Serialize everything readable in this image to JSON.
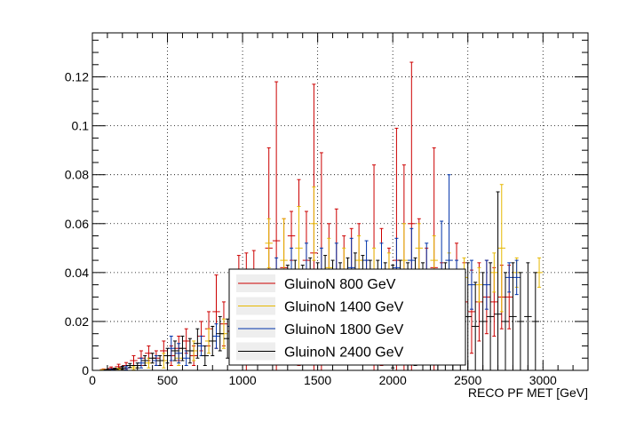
{
  "chart_data": {
    "type": "scatter",
    "title": "",
    "xlabel": "RECO PF MET [GeV]",
    "ylabel": "",
    "xlim": [
      0,
      3300
    ],
    "ylim": [
      0,
      0.138
    ],
    "grid": true,
    "legend_position": "bottom-center",
    "x_ticks": [
      "0",
      "500",
      "1000",
      "1500",
      "2000",
      "2500",
      "3000"
    ],
    "y_ticks": [
      "0",
      "0.02",
      "0.04",
      "0.06",
      "0.08",
      "0.1",
      "0.12"
    ],
    "bin_half_width": 25,
    "series": [
      {
        "name": "GluinoN 800 GeV",
        "color": "#cc0000",
        "points": [
          [
            75,
            0.0003,
            0.0003
          ],
          [
            125,
            0.0008,
            0.0006
          ],
          [
            175,
            0.0015,
            0.001
          ],
          [
            225,
            0.002,
            0.0012
          ],
          [
            275,
            0.004,
            0.002
          ],
          [
            325,
            0.005,
            0.003
          ],
          [
            375,
            0.007,
            0.003
          ],
          [
            425,
            0.005,
            0.003
          ],
          [
            475,
            0.008,
            0.004
          ],
          [
            525,
            0.006,
            0.004
          ],
          [
            575,
            0.009,
            0.005
          ],
          [
            625,
            0.012,
            0.005
          ],
          [
            675,
            0.006,
            0.004
          ],
          [
            725,
            0.014,
            0.006
          ],
          [
            775,
            0.017,
            0.007
          ],
          [
            825,
            0.024,
            0.015
          ],
          [
            875,
            0.019,
            0.009
          ],
          [
            925,
            0.016,
            0.01
          ],
          [
            975,
            0.025,
            0.022
          ],
          [
            1025,
            0.022,
            0.026
          ],
          [
            1075,
            0.034,
            0.015
          ],
          [
            1175,
            0.05,
            0.041
          ],
          [
            1225,
            0.053,
            0.065
          ],
          [
            1275,
            0.042,
            0.02
          ],
          [
            1325,
            0.055,
            0.01
          ],
          [
            1375,
            0.04,
            0.038
          ],
          [
            1425,
            0.045,
            0.02
          ],
          [
            1475,
            0.048,
            0.069
          ],
          [
            1525,
            0.04,
            0.049
          ],
          [
            1575,
            0.035,
            0.025
          ],
          [
            1625,
            0.04,
            0.026
          ],
          [
            1675,
            0.035,
            0.02
          ],
          [
            1725,
            0.038,
            0.02
          ],
          [
            1775,
            0.04,
            0.02
          ],
          [
            1825,
            0.03,
            0.015
          ],
          [
            1875,
            0.036,
            0.048
          ],
          [
            1925,
            0.03,
            0.028
          ],
          [
            1975,
            0.03,
            0.02
          ],
          [
            2025,
            0.045,
            0.054
          ],
          [
            2075,
            0.04,
            0.044
          ],
          [
            2125,
            0.06,
            0.066
          ],
          [
            2175,
            0.04,
            0.022
          ],
          [
            2225,
            0.03,
            0.02
          ],
          [
            2275,
            0.042,
            0.049
          ],
          [
            2325,
            0.03,
            0.014
          ],
          [
            2375,
            0.028,
            0.012
          ],
          [
            2425,
            0.03,
            0.022
          ],
          [
            2475,
            0.028,
            0.016
          ],
          [
            2525,
            0.024,
            0.017
          ],
          [
            2575,
            0.028,
            0.016
          ],
          [
            2625,
            0.03,
            0.015
          ],
          [
            2675,
            0.028,
            0.014
          ],
          [
            2725,
            0.03,
            0.013
          ],
          [
            2775,
            0.03,
            0.013
          ]
        ]
      },
      {
        "name": "GluinoN 1400 GeV",
        "color": "#e6b800",
        "points": [
          [
            75,
            0.0002,
            0.0002
          ],
          [
            175,
            0.0005,
            0.0004
          ],
          [
            275,
            0.001,
            0.0008
          ],
          [
            375,
            0.003,
            0.002
          ],
          [
            475,
            0.004,
            0.003
          ],
          [
            575,
            0.005,
            0.003
          ],
          [
            675,
            0.008,
            0.004
          ],
          [
            775,
            0.012,
            0.005
          ],
          [
            875,
            0.015,
            0.006
          ],
          [
            975,
            0.02,
            0.008
          ],
          [
            1075,
            0.028,
            0.01
          ],
          [
            1175,
            0.052,
            0.01
          ],
          [
            1275,
            0.045,
            0.017
          ],
          [
            1375,
            0.05,
            0.017
          ],
          [
            1475,
            0.06,
            0.015
          ],
          [
            1575,
            0.042,
            0.012
          ],
          [
            1675,
            0.04,
            0.01
          ],
          [
            1775,
            0.045,
            0.01
          ],
          [
            1875,
            0.04,
            0.01
          ],
          [
            1975,
            0.038,
            0.01
          ],
          [
            2075,
            0.045,
            0.015
          ],
          [
            2175,
            0.05,
            0.01
          ],
          [
            2275,
            0.045,
            0.01
          ],
          [
            2375,
            0.04,
            0.008
          ],
          [
            2475,
            0.038,
            0.008
          ],
          [
            2575,
            0.035,
            0.007
          ],
          [
            2675,
            0.04,
            0.008
          ],
          [
            2725,
            0.05,
            0.026
          ],
          [
            2825,
            0.04,
            0.006
          ],
          [
            2975,
            0.04,
            0.006
          ]
        ]
      },
      {
        "name": "GluinoN 1800 GeV",
        "color": "#0033aa",
        "points": [
          [
            125,
            0.0003,
            0.0003
          ],
          [
            225,
            0.001,
            0.0008
          ],
          [
            325,
            0.003,
            0.002
          ],
          [
            425,
            0.004,
            0.002
          ],
          [
            525,
            0.009,
            0.005
          ],
          [
            575,
            0.007,
            0.004
          ],
          [
            625,
            0.005,
            0.003
          ],
          [
            725,
            0.01,
            0.004
          ],
          [
            825,
            0.014,
            0.005
          ],
          [
            925,
            0.018,
            0.007
          ],
          [
            1025,
            0.022,
            0.009
          ],
          [
            1125,
            0.03,
            0.01
          ],
          [
            1225,
            0.035,
            0.011
          ],
          [
            1325,
            0.038,
            0.012
          ],
          [
            1425,
            0.04,
            0.012
          ],
          [
            1525,
            0.038,
            0.012
          ],
          [
            1625,
            0.04,
            0.012
          ],
          [
            1725,
            0.042,
            0.012
          ],
          [
            1825,
            0.045,
            0.008
          ],
          [
            1925,
            0.04,
            0.012
          ],
          [
            2025,
            0.042,
            0.012
          ],
          [
            2125,
            0.045,
            0.013
          ],
          [
            2225,
            0.04,
            0.012
          ],
          [
            2325,
            0.04,
            0.021
          ],
          [
            2375,
            0.045,
            0.035
          ],
          [
            2425,
            0.035,
            0.01
          ],
          [
            2525,
            0.035,
            0.01
          ],
          [
            2625,
            0.035,
            0.01
          ],
          [
            2775,
            0.038,
            0.006
          ],
          [
            2825,
            0.038,
            0.007
          ]
        ]
      },
      {
        "name": "GluinoN 2400 GeV",
        "color": "#000000",
        "points": [
          [
            100,
            0.0002,
            0.0002
          ],
          [
            150,
            0.0005,
            0.0004
          ],
          [
            200,
            0.001,
            0.0006
          ],
          [
            250,
            0.002,
            0.0008
          ],
          [
            300,
            0.002,
            0.001
          ],
          [
            350,
            0.004,
            0.002
          ],
          [
            400,
            0.005,
            0.002
          ],
          [
            450,
            0.004,
            0.002
          ],
          [
            500,
            0.006,
            0.003
          ],
          [
            550,
            0.008,
            0.004
          ],
          [
            600,
            0.009,
            0.005
          ],
          [
            650,
            0.008,
            0.005
          ],
          [
            700,
            0.011,
            0.006
          ],
          [
            750,
            0.006,
            0.004
          ],
          [
            800,
            0.012,
            0.006
          ],
          [
            850,
            0.015,
            0.007
          ],
          [
            900,
            0.013,
            0.008
          ],
          [
            950,
            0.015,
            0.008
          ],
          [
            1000,
            0.018,
            0.009
          ],
          [
            1050,
            0.02,
            0.01
          ],
          [
            1100,
            0.022,
            0.012
          ],
          [
            1150,
            0.024,
            0.013
          ],
          [
            1200,
            0.025,
            0.013
          ],
          [
            1250,
            0.026,
            0.014
          ],
          [
            1300,
            0.028,
            0.015
          ],
          [
            1350,
            0.03,
            0.015
          ],
          [
            1400,
            0.032,
            0.011
          ],
          [
            1450,
            0.03,
            0.016
          ],
          [
            1500,
            0.028,
            0.016
          ],
          [
            1550,
            0.03,
            0.017
          ],
          [
            1600,
            0.028,
            0.017
          ],
          [
            1650,
            0.026,
            0.018
          ],
          [
            1700,
            0.028,
            0.018
          ],
          [
            1750,
            0.03,
            0.018
          ],
          [
            1800,
            0.028,
            0.019
          ],
          [
            1850,
            0.026,
            0.019
          ],
          [
            1900,
            0.025,
            0.02
          ],
          [
            1950,
            0.024,
            0.02
          ],
          [
            2000,
            0.022,
            0.021
          ],
          [
            2050,
            0.024,
            0.021
          ],
          [
            2100,
            0.022,
            0.022
          ],
          [
            2150,
            0.024,
            0.022
          ],
          [
            2200,
            0.022,
            0.022
          ],
          [
            2250,
            0.02,
            0.02
          ],
          [
            2300,
            0.02,
            0.02
          ],
          [
            2350,
            0.022,
            0.022
          ],
          [
            2400,
            0.02,
            0.02
          ],
          [
            2450,
            0.02,
            0.02
          ],
          [
            2500,
            0.022,
            0.022
          ],
          [
            2550,
            0.018,
            0.018
          ],
          [
            2600,
            0.02,
            0.02
          ],
          [
            2650,
            0.022,
            0.022
          ],
          [
            2700,
            0.023,
            0.05
          ],
          [
            2750,
            0.02,
            0.02
          ],
          [
            2800,
            0.022,
            0.022
          ],
          [
            2850,
            0.02,
            0.02
          ],
          [
            2900,
            0.022,
            0.022
          ],
          [
            2950,
            0.02,
            0.02
          ]
        ]
      }
    ]
  }
}
